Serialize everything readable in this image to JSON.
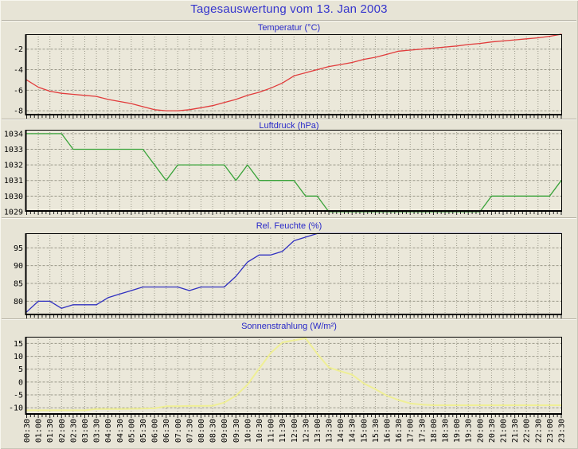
{
  "page_title": "Tagesauswertung vom 13. Jan 2003",
  "colors": {
    "page_bg": "#e7e4d6",
    "plot_bg": "#ebe8da",
    "page_title_text": "#3535cd",
    "chart_title_text": "#2828c8",
    "grid": "#9a9889",
    "axis": "#000000",
    "tick_label": "#000000",
    "temperature_line": "#e13b3b",
    "pressure_line": "#3aa33a",
    "humidity_line": "#3030c0",
    "solar_line": "#efef95"
  },
  "x_labels": [
    "00:30",
    "01:00",
    "01:30",
    "02:00",
    "02:30",
    "03:00",
    "03:30",
    "04:00",
    "04:30",
    "05:00",
    "05:30",
    "06:00",
    "06:30",
    "07:00",
    "07:30",
    "08:00",
    "08:30",
    "09:00",
    "09:30",
    "10:00",
    "10:30",
    "11:00",
    "11:30",
    "12:00",
    "12:30",
    "13:00",
    "13:30",
    "14:00",
    "14:30",
    "15:00",
    "15:30",
    "16:00",
    "16:30",
    "17:00",
    "17:30",
    "18:00",
    "18:30",
    "19:00",
    "19:30",
    "20:00",
    "20:30",
    "21:00",
    "21:30",
    "22:00",
    "22:30",
    "23:00",
    "23:30"
  ],
  "chart_data": [
    {
      "id": "temperature",
      "type": "line",
      "title": "Temperatur (°C)",
      "color_key": "temperature_line",
      "categories_ref": "x_labels",
      "y_ticks": [
        -2,
        -4,
        -6,
        -8
      ],
      "ylim": [
        -8.3,
        -0.55
      ],
      "line_width": 1.3,
      "values": [
        -5.0,
        -5.7,
        -6.1,
        -6.3,
        -6.4,
        -6.5,
        -6.6,
        -6.9,
        -7.1,
        -7.3,
        -7.6,
        -7.9,
        -8.0,
        -8.0,
        -7.9,
        -7.7,
        -7.5,
        -7.2,
        -6.9,
        -6.5,
        -6.2,
        -5.8,
        -5.3,
        -4.6,
        -4.3,
        -4.0,
        -3.7,
        -3.5,
        -3.3,
        -3.0,
        -2.8,
        -2.5,
        -2.2,
        -2.1,
        -2.0,
        -1.9,
        -1.8,
        -1.7,
        -1.55,
        -1.45,
        -1.3,
        -1.2,
        -1.1,
        -1.0,
        -0.9,
        -0.75,
        -0.55
      ]
    },
    {
      "id": "pressure",
      "type": "line",
      "title": "Luftdruck (hPa)",
      "color_key": "pressure_line",
      "categories_ref": "x_labels",
      "y_ticks": [
        1034,
        1033,
        1032,
        1031,
        1030,
        1029
      ],
      "ylim": [
        1029.1,
        1034.25
      ],
      "line_width": 1.3,
      "values": [
        1034,
        1034,
        1034,
        1034,
        1033,
        1033,
        1033,
        1033,
        1033,
        1033,
        1033,
        1032,
        1031,
        1032,
        1032,
        1032,
        1032,
        1032,
        1031,
        1032,
        1031,
        1031,
        1031,
        1031,
        1030,
        1030,
        1029,
        1029,
        1029,
        1029,
        1029,
        1029,
        1029,
        1029,
        1029,
        1029,
        1029,
        1029,
        1029,
        1029,
        1030,
        1030,
        1030,
        1030,
        1030,
        1030,
        1031
      ]
    },
    {
      "id": "humidity",
      "type": "line",
      "title": "Rel. Feuchte (%)",
      "color_key": "humidity_line",
      "categories_ref": "x_labels",
      "y_ticks": [
        95,
        90,
        85,
        80
      ],
      "ylim": [
        76.5,
        99.1
      ],
      "line_width": 1.3,
      "values": [
        77,
        80,
        80,
        78,
        79,
        79,
        79,
        81,
        82,
        83,
        84,
        84,
        84,
        84,
        83,
        84,
        84,
        84,
        87,
        91,
        93,
        93,
        94,
        97,
        98,
        99,
        99,
        99,
        99,
        99,
        99,
        99,
        99,
        99,
        99,
        99,
        99,
        99,
        99,
        99,
        99,
        99,
        99,
        99,
        99,
        99,
        99
      ]
    },
    {
      "id": "solar",
      "type": "line",
      "title": "Sonnenstrahlung (W/m²)",
      "color_key": "solar_line",
      "categories_ref": "x_labels",
      "y_ticks": [
        15,
        10,
        5,
        0,
        -5,
        -10
      ],
      "ylim": [
        -12.1,
        17.6
      ],
      "line_width": 2,
      "values": [
        -11,
        -11,
        -11,
        -11,
        -11,
        -11,
        -10.5,
        -10.5,
        -10.5,
        -10.4,
        -10.3,
        -10.2,
        -9.4,
        -9.4,
        -9.3,
        -9.3,
        -9.2,
        -8.0,
        -5.3,
        -1.0,
        5.2,
        11.3,
        15.4,
        16.2,
        17.0,
        11.0,
        5.7,
        4.2,
        2.9,
        -0.5,
        -2.8,
        -5.3,
        -7.0,
        -8.3,
        -8.8,
        -9.0,
        -9.0,
        -9.0,
        -9.0,
        -9.0,
        -9.0,
        -9.0,
        -9.0,
        -9.0,
        -9.0,
        -9.0,
        -9.0
      ]
    }
  ]
}
